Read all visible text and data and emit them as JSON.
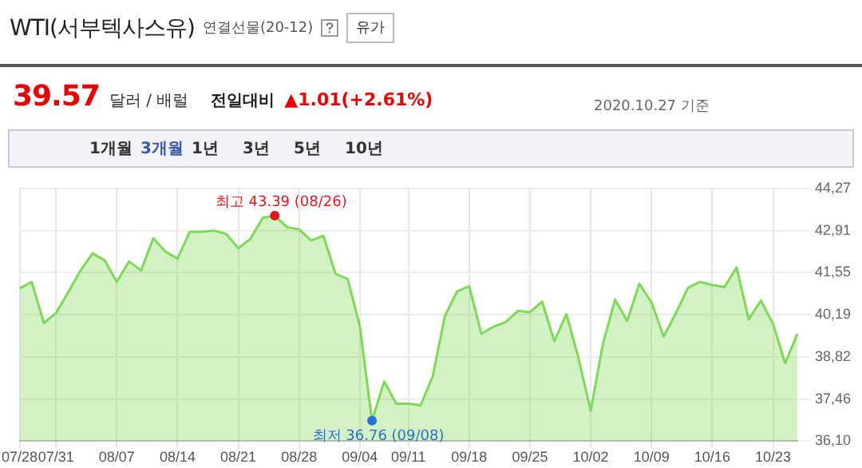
{
  "chart_data": {
    "type": "area",
    "title": "WTI(서부텍사스유)",
    "subtitle": "연결선물(20-12)",
    "annotations": [
      "유가",
      "39.57",
      "달러 / 배럴",
      "전일대비",
      "▲1.01(+2.61%)",
      "2020.10.27 기준",
      "1개월",
      "3개월",
      "1년",
      "3년",
      "5년",
      "10년",
      {
        "text": "최고 43.39 (08/26)",
        "y": 43.39
      },
      {
        "text": "최저 36.76 (09/08)",
        "y": 36.76
      }
    ],
    "categories": [
      "07/28",
      null,
      null,
      "07/31",
      null,
      null,
      null,
      null,
      "08/07",
      null,
      null,
      null,
      null,
      "08/14",
      null,
      null,
      null,
      null,
      "08/21",
      null,
      null,
      null,
      null,
      "08/28",
      null,
      null,
      null,
      null,
      "09/04",
      null,
      null,
      null,
      "09/11",
      null,
      null,
      null,
      null,
      "09/18",
      null,
      null,
      null,
      null,
      "09/25",
      null,
      null,
      null,
      null,
      "10/02",
      null,
      null,
      null,
      null,
      "10/09",
      null,
      null,
      null,
      null,
      "10/16",
      null,
      null,
      null,
      null,
      "10/23",
      null,
      null
    ],
    "series": [
      {
        "color": "#7ed957",
        "values": [
          41.04,
          41.25,
          39.92,
          40.24,
          40.91,
          41.61,
          42.17,
          41.95,
          41.25,
          41.91,
          41.62,
          42.66,
          42.23,
          42.0,
          42.87,
          42.87,
          42.91,
          42.8,
          42.34,
          42.64,
          43.32,
          43.39,
          43.02,
          42.95,
          42.59,
          42.74,
          41.51,
          41.34,
          39.81,
          36.76,
          38.03,
          37.31,
          37.31,
          37.26,
          38.2,
          40.15,
          40.94,
          41.11,
          39.57,
          39.8,
          39.95,
          40.31,
          40.27,
          40.61,
          39.33,
          40.21,
          38.77,
          37.08,
          39.24,
          40.68,
          39.99,
          41.19,
          40.59,
          39.48,
          40.23,
          41.06,
          41.25,
          41.15,
          41.08,
          41.72,
          40.04,
          40.65,
          39.89,
          38.62,
          39.57
        ]
      }
    ],
    "ylim": [
      36.1,
      44.27
    ],
    "yticks": [
      {
        "value": 36.1,
        "label": "36,10"
      },
      {
        "value": 37.46,
        "label": "37,46"
      },
      {
        "value": 38.82,
        "label": "38,82"
      },
      {
        "value": 40.19,
        "label": "40,19"
      },
      {
        "value": 41.55,
        "label": "41,55"
      },
      {
        "value": 42.91,
        "label": "42,91"
      },
      {
        "value": 44.27,
        "label": "44,27"
      }
    ],
    "grid": true
  }
}
